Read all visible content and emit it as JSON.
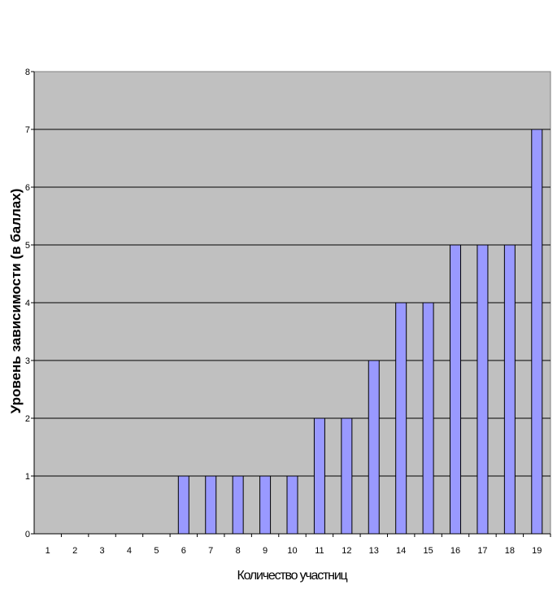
{
  "chart_data": {
    "type": "bar",
    "categories": [
      "1",
      "2",
      "3",
      "4",
      "5",
      "6",
      "7",
      "8",
      "9",
      "10",
      "11",
      "12",
      "13",
      "14",
      "15",
      "16",
      "17",
      "18",
      "19"
    ],
    "values": [
      0,
      0,
      0,
      0,
      0,
      1,
      1,
      1,
      1,
      1,
      2,
      2,
      3,
      4,
      4,
      5,
      5,
      5,
      7
    ],
    "xlabel": "Количество участниц",
    "ylabel": "Уровень зависимости (в баллах)",
    "ylim": [
      0,
      8
    ],
    "yticks": [
      "0",
      "1",
      "2",
      "3",
      "4",
      "5",
      "6",
      "7",
      "8"
    ],
    "grid": true,
    "legend": "none",
    "colors": {
      "bar_fill": "#9999ff",
      "bar_stroke": "#000000",
      "plot_background": "#c0c0c0",
      "gridline": "#000000"
    }
  }
}
